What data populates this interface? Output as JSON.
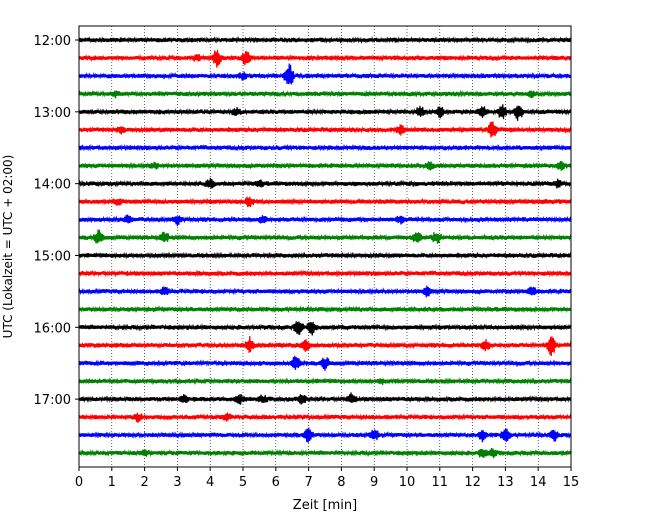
{
  "chart_data": {
    "type": "line",
    "title": "",
    "xlabel": "Zeit  [min]",
    "ylabel": "UTC (Lokalzeit = UTC + 02:00)",
    "xlim": [
      0,
      15
    ],
    "x_ticks": [
      "0",
      "1",
      "2",
      "3",
      "4",
      "5",
      "6",
      "7",
      "8",
      "9",
      "10",
      "11",
      "12",
      "13",
      "14",
      "15"
    ],
    "y_ticks": [
      "12:00",
      "13:00",
      "14:00",
      "15:00",
      "16:00",
      "17:00"
    ],
    "grid": "vertical dotted at each minute",
    "trace_colors": [
      "#000000",
      "#ff0000",
      "#0000ff",
      "#008000"
    ],
    "series": [
      {
        "start_utc": "12:00",
        "color": "#000000",
        "events": []
      },
      {
        "start_utc": "12:15",
        "color": "#ff0000",
        "events": [
          {
            "t": 4.2,
            "amp": 0.9
          },
          {
            "t": 5.1,
            "amp": 0.9
          },
          {
            "t": 3.6,
            "amp": 0.3
          }
        ]
      },
      {
        "start_utc": "12:30",
        "color": "#0000ff",
        "events": [
          {
            "t": 6.4,
            "amp": 1.4
          },
          {
            "t": 5.0,
            "amp": 0.35
          }
        ]
      },
      {
        "start_utc": "12:45",
        "color": "#008000",
        "events": [
          {
            "t": 1.1,
            "amp": 0.3
          },
          {
            "t": 13.8,
            "amp": 0.3
          }
        ]
      },
      {
        "start_utc": "13:00",
        "color": "#000000",
        "events": [
          {
            "t": 4.8,
            "amp": 0.4
          },
          {
            "t": 10.4,
            "amp": 0.6
          },
          {
            "t": 11.0,
            "amp": 0.6
          },
          {
            "t": 12.3,
            "amp": 0.7
          },
          {
            "t": 12.9,
            "amp": 0.8
          },
          {
            "t": 13.4,
            "amp": 0.9
          }
        ]
      },
      {
        "start_utc": "13:15",
        "color": "#ff0000",
        "events": [
          {
            "t": 1.3,
            "amp": 0.4
          },
          {
            "t": 9.8,
            "amp": 0.45
          },
          {
            "t": 12.6,
            "amp": 1.0
          }
        ]
      },
      {
        "start_utc": "13:30",
        "color": "#0000ff",
        "events": []
      },
      {
        "start_utc": "13:45",
        "color": "#008000",
        "events": [
          {
            "t": 2.3,
            "amp": 0.3
          },
          {
            "t": 10.7,
            "amp": 0.35
          },
          {
            "t": 14.7,
            "amp": 0.5
          }
        ]
      },
      {
        "start_utc": "14:00",
        "color": "#000000",
        "events": [
          {
            "t": 4.0,
            "amp": 0.45
          },
          {
            "t": 5.5,
            "amp": 0.35
          },
          {
            "t": 14.6,
            "amp": 0.35
          }
        ]
      },
      {
        "start_utc": "14:15",
        "color": "#ff0000",
        "events": [
          {
            "t": 5.2,
            "amp": 0.5
          },
          {
            "t": 1.2,
            "amp": 0.3
          }
        ]
      },
      {
        "start_utc": "14:30",
        "color": "#0000ff",
        "events": [
          {
            "t": 1.5,
            "amp": 0.4
          },
          {
            "t": 3.0,
            "amp": 0.55
          },
          {
            "t": 5.6,
            "amp": 0.4
          },
          {
            "t": 9.8,
            "amp": 0.35
          }
        ]
      },
      {
        "start_utc": "14:45",
        "color": "#008000",
        "events": [
          {
            "t": 0.6,
            "amp": 0.7
          },
          {
            "t": 2.6,
            "amp": 0.7
          },
          {
            "t": 10.3,
            "amp": 0.6
          },
          {
            "t": 10.9,
            "amp": 0.6
          }
        ]
      },
      {
        "start_utc": "15:00",
        "color": "#000000",
        "events": []
      },
      {
        "start_utc": "15:15",
        "color": "#ff0000",
        "events": []
      },
      {
        "start_utc": "15:30",
        "color": "#0000ff",
        "events": [
          {
            "t": 2.6,
            "amp": 0.4
          },
          {
            "t": 10.6,
            "amp": 0.5
          },
          {
            "t": 13.8,
            "amp": 0.5
          }
        ]
      },
      {
        "start_utc": "15:45",
        "color": "#008000",
        "events": []
      },
      {
        "start_utc": "16:00",
        "color": "#000000",
        "events": [
          {
            "t": 6.7,
            "amp": 0.9
          },
          {
            "t": 7.1,
            "amp": 0.8
          }
        ]
      },
      {
        "start_utc": "16:15",
        "color": "#ff0000",
        "events": [
          {
            "t": 5.2,
            "amp": 0.8
          },
          {
            "t": 6.9,
            "amp": 0.6
          },
          {
            "t": 12.4,
            "amp": 0.6
          },
          {
            "t": 14.4,
            "amp": 1.1
          }
        ]
      },
      {
        "start_utc": "16:30",
        "color": "#0000ff",
        "events": [
          {
            "t": 6.6,
            "amp": 0.9
          },
          {
            "t": 7.5,
            "amp": 0.6
          }
        ]
      },
      {
        "start_utc": "16:45",
        "color": "#008000",
        "events": [
          {
            "t": 9.2,
            "amp": 0.3
          }
        ]
      },
      {
        "start_utc": "17:00",
        "color": "#000000",
        "events": [
          {
            "t": 3.2,
            "amp": 0.4
          },
          {
            "t": 4.9,
            "amp": 0.5
          },
          {
            "t": 5.6,
            "amp": 0.4
          },
          {
            "t": 6.8,
            "amp": 0.5
          },
          {
            "t": 8.3,
            "amp": 0.5
          }
        ]
      },
      {
        "start_utc": "17:15",
        "color": "#ff0000",
        "events": [
          {
            "t": 1.8,
            "amp": 0.4
          },
          {
            "t": 4.5,
            "amp": 0.3
          }
        ]
      },
      {
        "start_utc": "17:30",
        "color": "#0000ff",
        "events": [
          {
            "t": 7.0,
            "amp": 0.8
          },
          {
            "t": 9.0,
            "amp": 0.6
          },
          {
            "t": 12.3,
            "amp": 0.6
          },
          {
            "t": 13.0,
            "amp": 0.8
          },
          {
            "t": 14.5,
            "amp": 0.6
          }
        ]
      },
      {
        "start_utc": "17:45",
        "color": "#008000",
        "events": [
          {
            "t": 2.0,
            "amp": 0.3
          },
          {
            "t": 12.3,
            "amp": 0.5
          },
          {
            "t": 12.6,
            "amp": 0.4
          }
        ]
      }
    ]
  }
}
